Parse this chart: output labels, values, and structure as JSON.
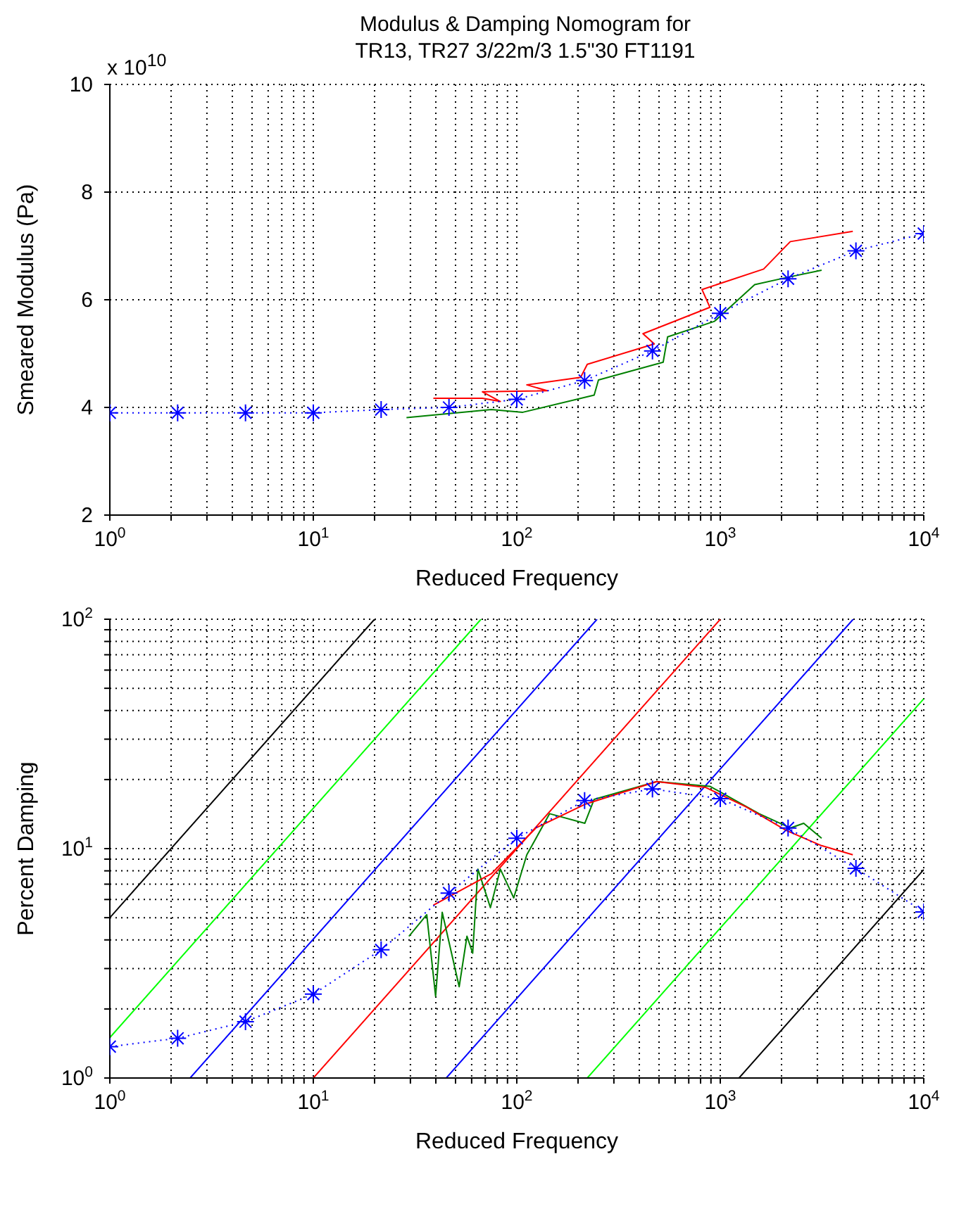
{
  "chart_data": [
    {
      "type": "line",
      "title": "Modulus & Damping Nomogram for\nTR13, TR27 3/22m/3 1.5\"30 FT1191",
      "xlabel": "Reduced Frequency",
      "ylabel": "Smeared Modulus (Pa)",
      "annotations": [
        "x 10$^{10}$"
      ],
      "log": "x",
      "grid": true,
      "xlim": [
        1,
        10000
      ],
      "xticks": [
        {
          "value": 1,
          "label": "10$^{0}$"
        },
        {
          "value": 2,
          "label": null
        },
        {
          "value": 3,
          "label": null
        },
        {
          "value": 4,
          "label": null
        },
        {
          "value": 5,
          "label": null
        },
        {
          "value": 6,
          "label": null
        },
        {
          "value": 7,
          "label": null
        },
        {
          "value": 8,
          "label": null
        },
        {
          "value": 9,
          "label": null
        },
        {
          "value": 10,
          "label": "10$^{1}$"
        },
        {
          "value": 20,
          "label": null
        },
        {
          "value": 30,
          "label": null
        },
        {
          "value": 40,
          "label": null
        },
        {
          "value": 50,
          "label": null
        },
        {
          "value": 60,
          "label": null
        },
        {
          "value": 70,
          "label": null
        },
        {
          "value": 80,
          "label": null
        },
        {
          "value": 90,
          "label": null
        },
        {
          "value": 100,
          "label": "10$^{2}$"
        },
        {
          "value": 200,
          "label": null
        },
        {
          "value": 300,
          "label": null
        },
        {
          "value": 400,
          "label": null
        },
        {
          "value": 500,
          "label": null
        },
        {
          "value": 600,
          "label": null
        },
        {
          "value": 700,
          "label": null
        },
        {
          "value": 800,
          "label": null
        },
        {
          "value": 900,
          "label": null
        },
        {
          "value": 1000,
          "label": "10$^{3}$"
        },
        {
          "value": 2000,
          "label": null
        },
        {
          "value": 3000,
          "label": null
        },
        {
          "value": 4000,
          "label": null
        },
        {
          "value": 5000,
          "label": null
        },
        {
          "value": 6000,
          "label": null
        },
        {
          "value": 7000,
          "label": null
        },
        {
          "value": 8000,
          "label": null
        },
        {
          "value": 9000,
          "label": null
        },
        {
          "value": 10000,
          "label": "10$^{4}$"
        }
      ],
      "ylim": [
        2,
        10
      ],
      "yticks": [
        2,
        4,
        6,
        8,
        10
      ],
      "series": [
        {
          "color": "#ff0000",
          "marker": "none",
          "line_style": "solid",
          "x": [
            38.9,
            67.8,
            83,
            67.8,
            141,
            112,
            206,
            222,
            474,
            417,
            889,
            813,
            1633,
            2208,
            4480
          ],
          "values": [
            4.17,
            4.17,
            4.11,
            4.29,
            4.31,
            4.42,
            4.56,
            4.8,
            5.18,
            5.37,
            5.86,
            6.19,
            6.57,
            7.08,
            7.27
          ]
        },
        {
          "color": "#008000",
          "marker": "none",
          "line_style": "solid",
          "x": [
            28.7,
            75,
            107,
            240,
            252,
            524,
            551,
            937,
            1476,
            2100,
            3148
          ],
          "values": [
            3.81,
            3.96,
            3.91,
            4.23,
            4.51,
            4.84,
            5.31,
            5.6,
            6.28,
            6.41,
            6.55
          ]
        },
        {
          "color": "#0000ff",
          "marker": "cross",
          "line_style": "dotted",
          "x": [
            1,
            2.154,
            4.642,
            10,
            21.54,
            46.42,
            100,
            215.4,
            464.2,
            1000,
            2154,
            4642,
            10000
          ],
          "values": [
            3.9,
            3.9,
            3.9,
            3.9,
            3.96,
            4.0,
            4.15,
            4.5,
            5.05,
            5.75,
            6.39,
            6.91,
            7.23
          ]
        }
      ]
    },
    {
      "type": "line",
      "xlabel": "Reduced Frequency",
      "ylabel": "Percent Damping",
      "log": "xy",
      "grid": true,
      "xlim": [
        1,
        10000
      ],
      "xticks": [
        {
          "value": 1,
          "label": "10$^{0}$"
        },
        {
          "value": 2,
          "label": null
        },
        {
          "value": 3,
          "label": null
        },
        {
          "value": 4,
          "label": null
        },
        {
          "value": 5,
          "label": null
        },
        {
          "value": 6,
          "label": null
        },
        {
          "value": 7,
          "label": null
        },
        {
          "value": 8,
          "label": null
        },
        {
          "value": 9,
          "label": null
        },
        {
          "value": 10,
          "label": "10$^{1}$"
        },
        {
          "value": 20,
          "label": null
        },
        {
          "value": 30,
          "label": null
        },
        {
          "value": 40,
          "label": null
        },
        {
          "value": 50,
          "label": null
        },
        {
          "value": 60,
          "label": null
        },
        {
          "value": 70,
          "label": null
        },
        {
          "value": 80,
          "label": null
        },
        {
          "value": 90,
          "label": null
        },
        {
          "value": 100,
          "label": "10$^{2}$"
        },
        {
          "value": 200,
          "label": null
        },
        {
          "value": 300,
          "label": null
        },
        {
          "value": 400,
          "label": null
        },
        {
          "value": 500,
          "label": null
        },
        {
          "value": 600,
          "label": null
        },
        {
          "value": 700,
          "label": null
        },
        {
          "value": 800,
          "label": null
        },
        {
          "value": 900,
          "label": null
        },
        {
          "value": 1000,
          "label": "10$^{3}$"
        },
        {
          "value": 2000,
          "label": null
        },
        {
          "value": 3000,
          "label": null
        },
        {
          "value": 4000,
          "label": null
        },
        {
          "value": 5000,
          "label": null
        },
        {
          "value": 6000,
          "label": null
        },
        {
          "value": 7000,
          "label": null
        },
        {
          "value": 8000,
          "label": null
        },
        {
          "value": 9000,
          "label": null
        },
        {
          "value": 10000,
          "label": "10$^{4}$"
        }
      ],
      "ylim": [
        1,
        100
      ],
      "yticks": [
        {
          "value": 1,
          "label": "10$^{0}$"
        },
        {
          "value": 2,
          "label": null
        },
        {
          "value": 3,
          "label": null
        },
        {
          "value": 4,
          "label": null
        },
        {
          "value": 5,
          "label": null
        },
        {
          "value": 6,
          "label": null
        },
        {
          "value": 7,
          "label": null
        },
        {
          "value": 8,
          "label": null
        },
        {
          "value": 9,
          "label": null
        },
        {
          "value": 10,
          "label": "10$^{1}$"
        },
        {
          "value": 20,
          "label": null
        },
        {
          "value": 30,
          "label": null
        },
        {
          "value": 40,
          "label": null
        },
        {
          "value": 50,
          "label": null
        },
        {
          "value": 60,
          "label": null
        },
        {
          "value": 70,
          "label": null
        },
        {
          "value": 80,
          "label": null
        },
        {
          "value": 90,
          "label": null
        },
        {
          "value": 100,
          "label": "10$^{2}$"
        }
      ],
      "series": [
        {
          "color": "#000000",
          "marker": "none",
          "line_style": "solid",
          "x": [
            1,
            20
          ],
          "values": [
            5,
            100
          ]
        },
        {
          "color": "#00ff00",
          "marker": "none",
          "line_style": "solid",
          "x": [
            1,
            66.7
          ],
          "values": [
            1.5,
            100
          ]
        },
        {
          "color": "#0000ff",
          "marker": "none",
          "line_style": "solid",
          "x": [
            2.48,
            248
          ],
          "values": [
            1,
            100
          ]
        },
        {
          "color": "#ff0000",
          "marker": "none",
          "line_style": "solid",
          "x": [
            10,
            1000
          ],
          "values": [
            1,
            100
          ]
        },
        {
          "color": "#0000ff",
          "marker": "none",
          "line_style": "solid",
          "x": [
            45,
            4500
          ],
          "values": [
            1,
            100
          ]
        },
        {
          "color": "#00ff00",
          "marker": "none",
          "line_style": "solid",
          "x": [
            222,
            10000
          ],
          "values": [
            1,
            45
          ]
        },
        {
          "color": "#000000",
          "marker": "none",
          "line_style": "solid",
          "x": [
            1236,
            10000
          ],
          "values": [
            1,
            8.1
          ]
        },
        {
          "color": "#008000",
          "marker": "none",
          "line_style": "solid",
          "x": [
            29.5,
            36.1,
            39.9,
            43,
            52.1,
            56.9,
            60.7,
            64.4,
            74.2,
            83,
            96.6,
            112,
            145,
            216,
            240,
            487,
            889,
            1552,
            2208,
            2570,
            3148
          ],
          "values": [
            4.15,
            5.15,
            2.27,
            5.28,
            2.5,
            4.15,
            3.5,
            8.14,
            5.53,
            8.14,
            6.1,
            9.4,
            14.2,
            12.9,
            16.4,
            19.6,
            18.7,
            14.2,
            12.3,
            12.9,
            11.1
          ]
        },
        {
          "color": "#ff0000",
          "marker": "none",
          "line_style": "solid",
          "x": [
            38.9,
            75,
            124,
            216,
            487,
            845,
            1338,
            2108,
            3148,
            4480
          ],
          "values": [
            5.67,
            7.77,
            12.3,
            15.6,
            19.6,
            18.5,
            15.2,
            12.0,
            10.3,
            9.4
          ]
        },
        {
          "color": "#0000ff",
          "marker": "cross",
          "line_style": "dotted",
          "x": [
            1,
            2.154,
            4.642,
            10,
            21.54,
            46.42,
            100,
            215.4,
            464.2,
            1000,
            2154,
            4642,
            10000
          ],
          "values": [
            1.37,
            1.49,
            1.76,
            2.32,
            3.62,
            6.4,
            11.1,
            16.2,
            18.2,
            16.5,
            12.3,
            8.2,
            5.3
          ]
        }
      ]
    }
  ]
}
